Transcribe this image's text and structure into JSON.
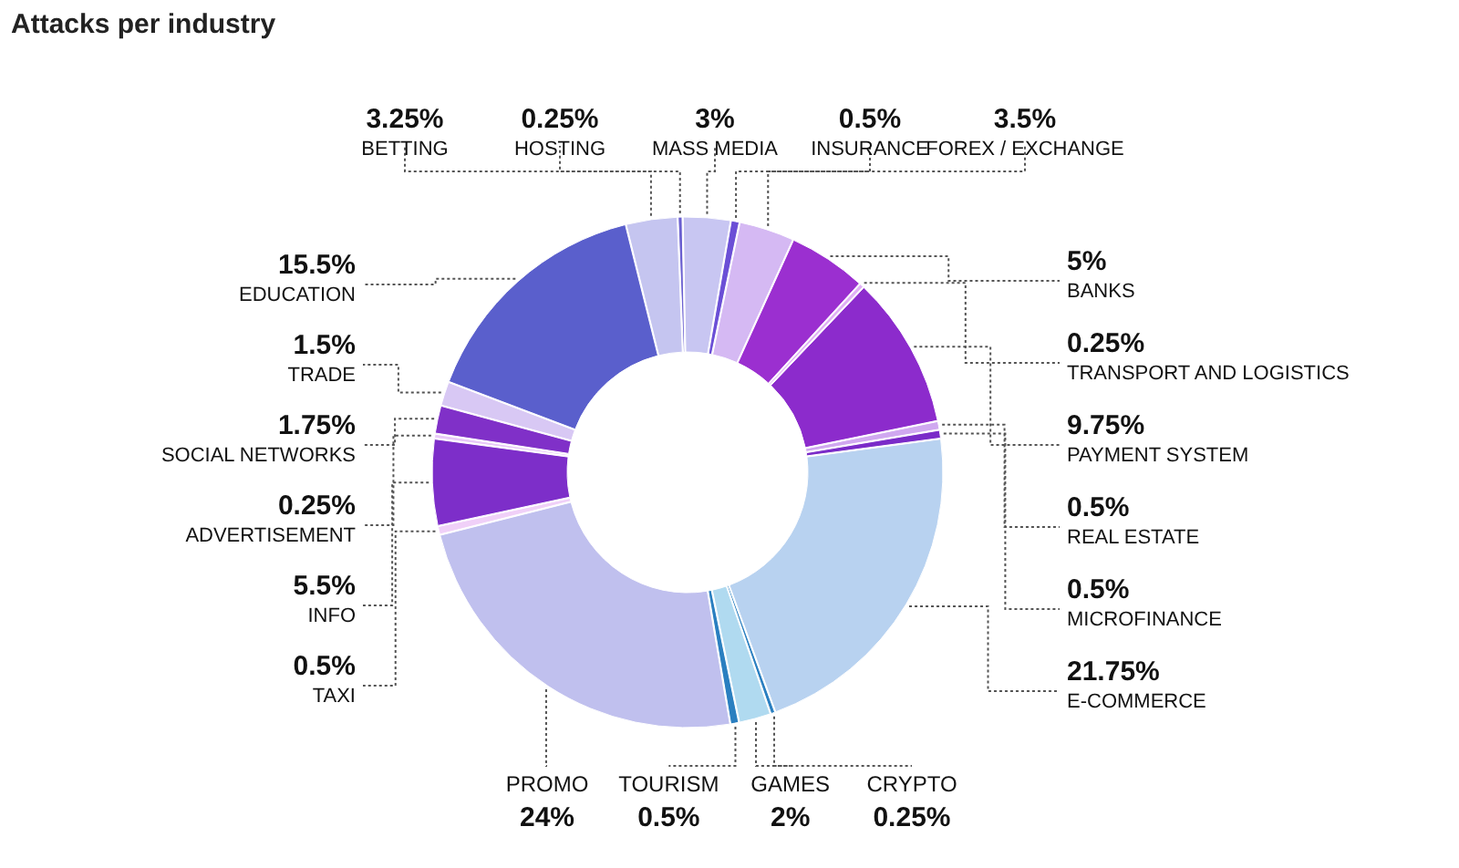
{
  "chart_data": {
    "type": "donut",
    "title": "Attacks per industry",
    "categories": [
      "BETTING",
      "HOSTING",
      "MASS MEDIA",
      "INSURANCE",
      "FOREX / EXCHANGE",
      "BANKS",
      "TRANSPORT AND LOGISTICS",
      "PAYMENT SYSTEM",
      "REAL ESTATE",
      "MICROFINANCE",
      "E-COMMERCE",
      "CRYPTO",
      "GAMES",
      "TOURISM",
      "PROMO",
      "TAXI",
      "INFO",
      "ADVERTISEMENT",
      "SOCIAL NETWORKS",
      "TRADE",
      "EDUCATION"
    ],
    "values": [
      3.25,
      0.25,
      3,
      0.5,
      3.5,
      5,
      0.25,
      9.75,
      0.5,
      0.5,
      21.75,
      0.25,
      2,
      0.5,
      24,
      0.5,
      5.5,
      0.25,
      1.75,
      1.5,
      15.5
    ],
    "value_labels": [
      "3.25%",
      "0.25%",
      "3%",
      "0.5%",
      "3.5%",
      "5%",
      "0.25%",
      "9.75%",
      "0.5%",
      "0.5%",
      "21.75%",
      "0.25%",
      "2%",
      "0.5%",
      "24%",
      "0.5%",
      "5.5%",
      "0.25%",
      "1.75%",
      "1.5%",
      "15.5%"
    ],
    "colors": [
      "#c5c5f0",
      "#6a5fd0",
      "#c8c6f2",
      "#6b4fd6",
      "#d5b9f3",
      "#9b2fd0",
      "#e0b0f5",
      "#8c2bcc",
      "#d0a8f0",
      "#7a2bc8",
      "#b8d2f0",
      "#2a7fc0",
      "#b0daf0",
      "#2a7fc0",
      "#c0c0ee",
      "#f0d0f8",
      "#7d2ec9",
      "#e8c8f8",
      "#8030c8",
      "#d8c8f4",
      "#5a5fcc"
    ]
  }
}
